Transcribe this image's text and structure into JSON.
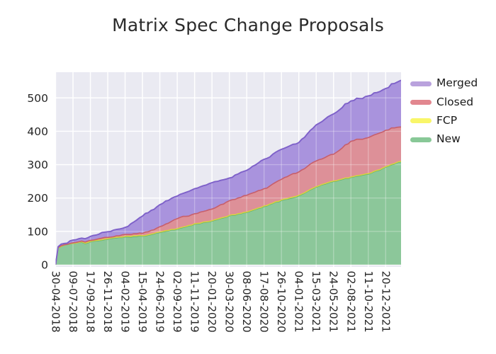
{
  "chart_data": {
    "type": "area",
    "stacked": true,
    "title": "Matrix Spec Change Proposals",
    "grid": true,
    "legend_position": "upper-right-outside",
    "x_tick_rotation": 90,
    "xlim": [
      "30-04-2018",
      "20-02-2022"
    ],
    "ylim": [
      0,
      575
    ],
    "y_ticks": [
      0,
      100,
      200,
      300,
      400,
      500
    ],
    "x_ticks": [
      "30-04-2018",
      "09-07-2018",
      "17-09-2018",
      "26-11-2018",
      "04-02-2019",
      "15-04-2019",
      "24-06-2019",
      "02-09-2019",
      "11-11-2019",
      "20-01-2020",
      "30-03-2020",
      "08-06-2020",
      "17-08-2020",
      "26-10-2020",
      "04-01-2021",
      "15-03-2021",
      "24-05-2021",
      "02-08-2021",
      "11-10-2021",
      "20-12-2021"
    ],
    "x": [
      "30-04-2018",
      "10-05-2018",
      "04-06-2018",
      "09-07-2018",
      "13-08-2018",
      "27-08-2018",
      "17-09-2018",
      "22-10-2018",
      "26-11-2018",
      "31-12-2018",
      "04-02-2019",
      "11-03-2019",
      "15-04-2019",
      "20-05-2019",
      "24-06-2019",
      "29-07-2019",
      "02-09-2019",
      "07-10-2019",
      "11-11-2019",
      "16-12-2019",
      "20-01-2020",
      "24-02-2020",
      "30-03-2020",
      "04-05-2020",
      "08-06-2020",
      "13-07-2020",
      "17-08-2020",
      "21-09-2020",
      "26-10-2020",
      "30-11-2020",
      "04-01-2021",
      "08-02-2021",
      "15-03-2021",
      "19-04-2021",
      "24-05-2021",
      "28-06-2021",
      "02-08-2021",
      "06-09-2021",
      "11-10-2021",
      "15-11-2021",
      "20-12-2021",
      "24-01-2022",
      "20-02-2022"
    ],
    "series": [
      {
        "name": "New",
        "values": [
          0,
          50,
          58,
          63,
          67,
          63,
          68,
          72,
          76,
          80,
          83,
          84,
          85,
          90,
          96,
          101,
          106,
          113,
          121,
          126,
          130,
          138,
          146,
          151,
          156,
          165,
          174,
          183,
          192,
          198,
          206,
          219,
          232,
          241,
          249,
          255,
          261,
          266,
          271,
          281,
          292,
          301,
          308
        ]
      },
      {
        "name": "FCP",
        "values": [
          0,
          1,
          1,
          1,
          2,
          2,
          2,
          2,
          2,
          2,
          2,
          3,
          2,
          2,
          2,
          2,
          2,
          2,
          2,
          2,
          2,
          2,
          2,
          2,
          2,
          2,
          2,
          2,
          2,
          3,
          2,
          2,
          2,
          2,
          2,
          2,
          2,
          2,
          2,
          2,
          2,
          2,
          2
        ]
      },
      {
        "name": "Closed",
        "values": [
          0,
          1,
          1,
          2,
          2,
          3,
          3,
          4,
          4,
          5,
          6,
          6,
          7,
          11,
          16,
          22,
          30,
          30,
          30,
          32,
          35,
          40,
          44,
          47,
          50,
          51,
          52,
          57,
          62,
          68,
          70,
          74,
          77,
          78,
          80,
          93,
          107,
          108,
          108,
          109,
          109,
          107,
          103
        ]
      },
      {
        "name": "Merged",
        "values": [
          0,
          2,
          4,
          8,
          9,
          10,
          12,
          14,
          17,
          19,
          21,
          35,
          52,
          60,
          66,
          68,
          68,
          72,
          75,
          77,
          79,
          73,
          68,
          72,
          75,
          81,
          88,
          89,
          90,
          88,
          88,
          98,
          108,
          115,
          121,
          121,
          121,
          122,
          125,
          124,
          125,
          133,
          140
        ]
      }
    ],
    "legend": [
      {
        "label": "Merged"
      },
      {
        "label": "Closed"
      },
      {
        "label": "FCP"
      },
      {
        "label": "New"
      }
    ]
  },
  "colors": {
    "plot_bg": "#eaeaf2",
    "grid": "#ffffff",
    "text": "#262626",
    "title": "#2b2b2b",
    "series": {
      "New": {
        "fill": "#8cc79a",
        "edge": "#5fb274",
        "legend": "#88c897"
      },
      "FCP": {
        "fill": "#f2ee5e",
        "edge": "#d9d33f",
        "legend": "#f9f669"
      },
      "Closed": {
        "fill": "#dd9098",
        "edge": "#c75f6b",
        "legend": "#e2878f"
      },
      "Merged": {
        "fill": "#a993dd",
        "edge": "#7e61c9",
        "legend": "#b9a2dd"
      }
    }
  }
}
